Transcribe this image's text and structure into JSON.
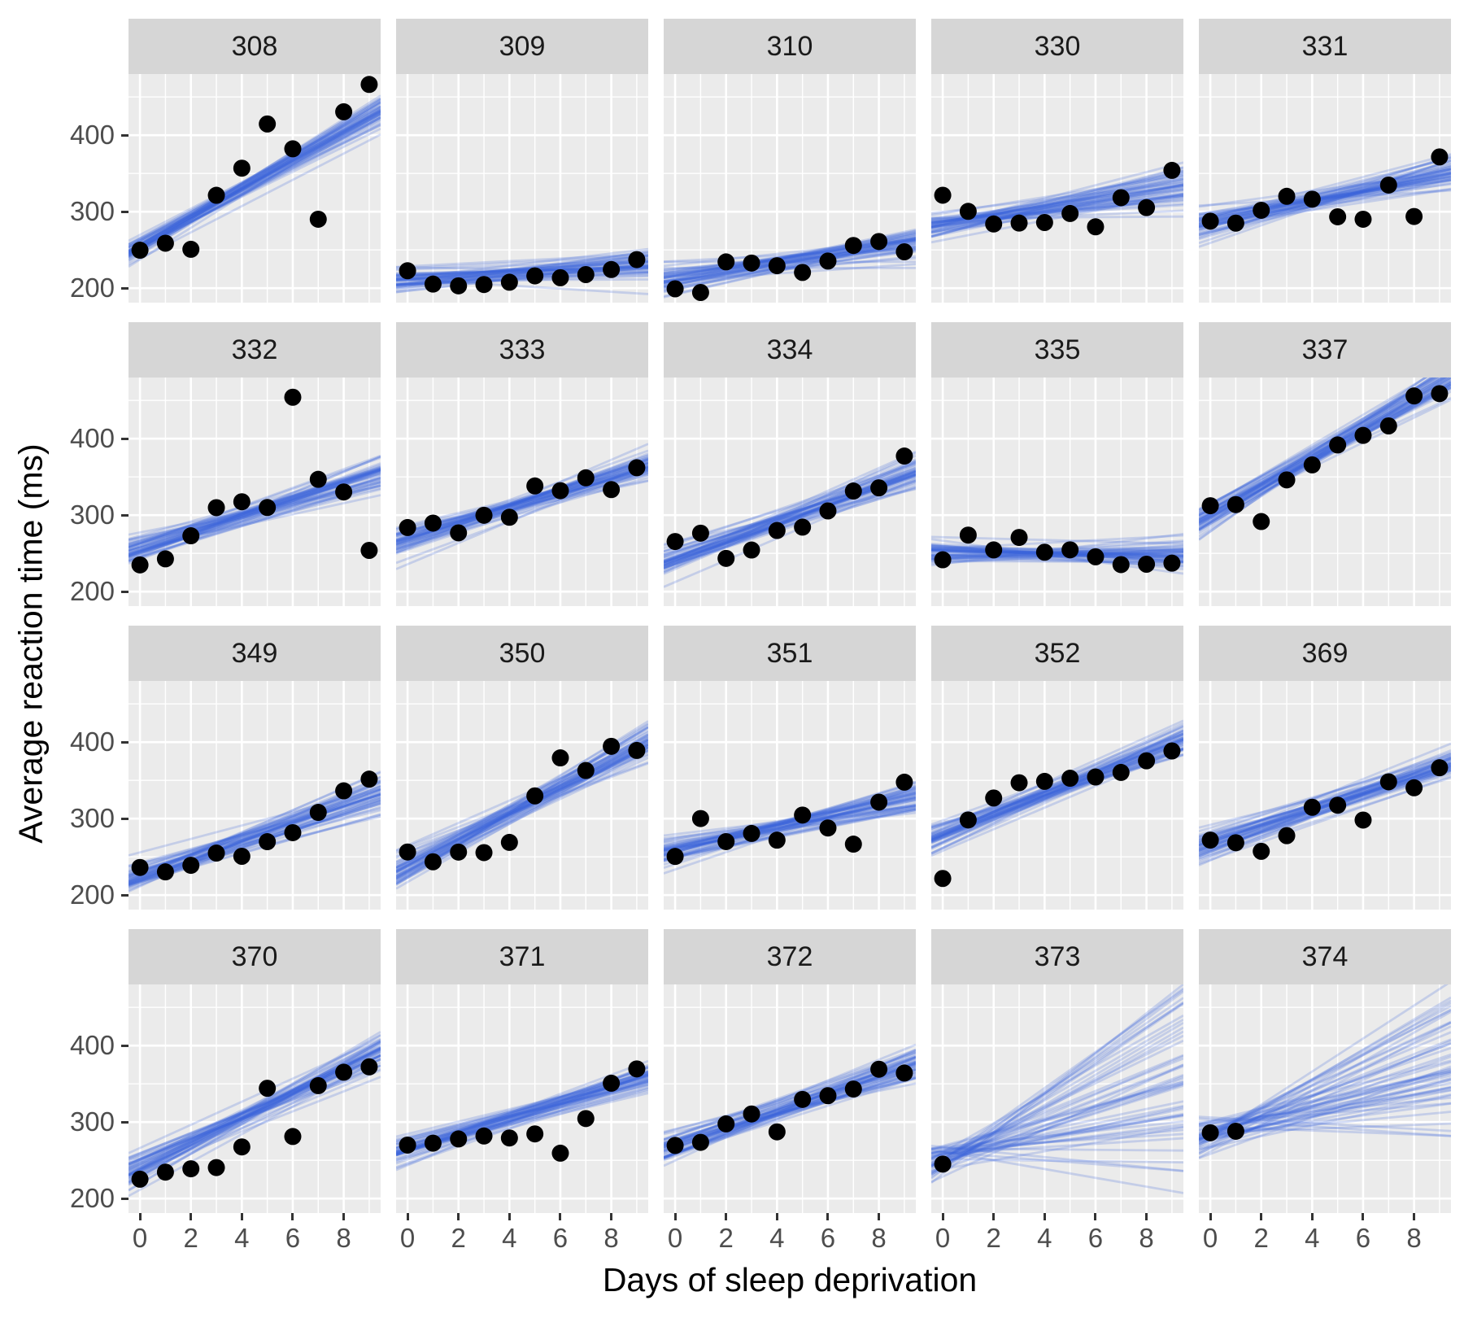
{
  "titles": {
    "x_axis": "Days of sleep deprivation",
    "y_axis": "Average reaction time (ms)"
  },
  "style": {
    "figure_bg": "#FFFFFF",
    "panel_bg": "#EBEBEB",
    "strip_bg": "#D6D6D6",
    "strip_text": "#1A1A1A",
    "grid_color": "#FFFFFF",
    "point_color": "#000000",
    "line_color": "#3A66D9",
    "line_alpha": 0.22,
    "tick_mark_color": "#333333",
    "tick_label_color": "#4D4D4D",
    "axis_title_color": "#000000"
  },
  "chart_data": {
    "type": "scatter",
    "subtype": "faceted scatter with posterior fit line draws",
    "facet_variable": "Subject",
    "x_variable": "Days of sleep deprivation",
    "y_variable": "Average reaction time (ms)",
    "x_axis": {
      "ticks": [
        0,
        2,
        4,
        6,
        8
      ],
      "minor_ticks": [
        1,
        3,
        5,
        7,
        9
      ],
      "limits": [
        -0.45,
        9.45
      ]
    },
    "y_axis": {
      "ticks": [
        200,
        300,
        400
      ],
      "minor_ticks": [
        250,
        350,
        450
      ],
      "limits": [
        181,
        480
      ]
    },
    "grid": true,
    "legend": "none",
    "fit_line_draws_per_facet": 50,
    "facets": [
      {
        "label": "308",
        "days": [
          0,
          1,
          2,
          3,
          4,
          5,
          6,
          7,
          8,
          9
        ],
        "reaction": [
          249.6,
          258.7,
          250.8,
          321.4,
          356.9,
          414.7,
          382.2,
          290.1,
          430.6,
          466.4
        ],
        "fit": {
          "intercept": 252,
          "slope": 19.2,
          "intercept_sd": 9,
          "slope_sd": 1.6
        }
      },
      {
        "label": "309",
        "days": [
          0,
          1,
          2,
          3,
          4,
          5,
          6,
          7,
          8,
          9
        ],
        "reaction": [
          222.7,
          205.3,
          203.0,
          204.7,
          207.7,
          216.0,
          213.6,
          217.7,
          224.3,
          237.3
        ],
        "fit": {
          "intercept": 211,
          "slope": 1.8,
          "intercept_sd": 8,
          "slope_sd": 1.4
        }
      },
      {
        "label": "310",
        "days": [
          0,
          1,
          2,
          3,
          4,
          5,
          6,
          7,
          8,
          9
        ],
        "reaction": [
          199.1,
          194.3,
          234.3,
          232.8,
          229.3,
          220.5,
          235.4,
          255.8,
          261.0,
          247.5
        ],
        "fit": {
          "intercept": 213,
          "slope": 4.8,
          "intercept_sd": 8,
          "slope_sd": 1.5
        }
      },
      {
        "label": "330",
        "days": [
          0,
          1,
          2,
          3,
          4,
          5,
          6,
          7,
          8,
          9
        ],
        "reaction": [
          321.5,
          300.4,
          283.9,
          285.1,
          285.8,
          297.6,
          280.2,
          318.3,
          305.3,
          354.0
        ],
        "fit": {
          "intercept": 283,
          "slope": 5.3,
          "intercept_sd": 10,
          "slope_sd": 1.9
        }
      },
      {
        "label": "331",
        "days": [
          0,
          1,
          2,
          3,
          4,
          5,
          6,
          7,
          8,
          9
        ],
        "reaction": [
          287.6,
          285.0,
          301.8,
          320.1,
          316.3,
          293.3,
          290.1,
          334.8,
          293.7,
          371.6
        ],
        "fit": {
          "intercept": 285,
          "slope": 7.2,
          "intercept_sd": 9,
          "slope_sd": 1.7
        }
      },
      {
        "label": "332",
        "days": [
          0,
          1,
          2,
          3,
          4,
          5,
          6,
          7,
          8,
          9
        ],
        "reaction": [
          234.9,
          242.8,
          273.0,
          309.8,
          317.5,
          310.0,
          454.2,
          346.8,
          330.3,
          253.9
        ],
        "fit": {
          "intercept": 259,
          "slope": 10.0,
          "intercept_sd": 10,
          "slope_sd": 1.8
        }
      },
      {
        "label": "333",
        "days": [
          0,
          1,
          2,
          3,
          4,
          5,
          6,
          7,
          8,
          9
        ],
        "reaction": [
          283.8,
          289.6,
          276.8,
          299.8,
          297.2,
          338.2,
          332.0,
          348.8,
          333.4,
          362.0
        ],
        "fit": {
          "intercept": 268,
          "slope": 10.2,
          "intercept_sd": 9,
          "slope_sd": 1.6
        }
      },
      {
        "label": "334",
        "days": [
          0,
          1,
          2,
          3,
          4,
          5,
          6,
          7,
          8,
          9
        ],
        "reaction": [
          265.5,
          276.4,
          243.4,
          254.4,
          279.9,
          284.3,
          305.5,
          331.5,
          335.7,
          377.3
        ],
        "fit": {
          "intercept": 245,
          "slope": 11.5,
          "intercept_sd": 9,
          "slope_sd": 1.6
        }
      },
      {
        "label": "335",
        "days": [
          0,
          1,
          2,
          3,
          4,
          5,
          6,
          7,
          8,
          9
        ],
        "reaction": [
          241.6,
          273.9,
          254.5,
          270.8,
          251.5,
          254.6,
          245.5,
          235.3,
          235.8,
          237.2
        ],
        "fit": {
          "intercept": 251,
          "slope": -0.2,
          "intercept_sd": 9,
          "slope_sd": 1.8
        }
      },
      {
        "label": "337",
        "days": [
          0,
          1,
          2,
          3,
          4,
          5,
          6,
          7,
          8,
          9
        ],
        "reaction": [
          312.3,
          313.8,
          291.6,
          346.1,
          365.7,
          391.8,
          404.3,
          416.7,
          455.9,
          458.9
        ],
        "fit": {
          "intercept": 300,
          "slope": 18.9,
          "intercept_sd": 10,
          "slope_sd": 1.7
        }
      },
      {
        "label": "349",
        "days": [
          0,
          1,
          2,
          3,
          4,
          5,
          6,
          7,
          8,
          9
        ],
        "reaction": [
          236.1,
          230.3,
          238.9,
          254.9,
          250.7,
          269.8,
          281.6,
          308.1,
          336.3,
          351.6
        ],
        "fit": {
          "intercept": 226,
          "slope": 11.6,
          "intercept_sd": 9,
          "slope_sd": 1.7
        }
      },
      {
        "label": "350",
        "days": [
          0,
          1,
          2,
          3,
          4,
          5,
          6,
          7,
          8,
          9
        ],
        "reaction": [
          256.3,
          243.5,
          256.2,
          255.5,
          268.9,
          329.7,
          379.4,
          362.9,
          394.5,
          389.1
        ],
        "fit": {
          "intercept": 239,
          "slope": 17.0,
          "intercept_sd": 11,
          "slope_sd": 1.9
        }
      },
      {
        "label": "351",
        "days": [
          0,
          1,
          2,
          3,
          4,
          5,
          6,
          7,
          8,
          9
        ],
        "reaction": [
          250.5,
          300.1,
          269.9,
          280.6,
          271.8,
          304.6,
          287.7,
          266.6,
          321.5,
          347.6
        ],
        "fit": {
          "intercept": 258,
          "slope": 7.6,
          "intercept_sd": 9,
          "slope_sd": 1.7
        }
      },
      {
        "label": "352",
        "days": [
          0,
          1,
          2,
          3,
          4,
          5,
          6,
          7,
          8,
          9
        ],
        "reaction": [
          221.7,
          298.2,
          326.9,
          346.9,
          348.7,
          352.8,
          354.4,
          360.4,
          375.6,
          388.5
        ],
        "fit": {
          "intercept": 278,
          "slope": 13.4,
          "intercept_sd": 10,
          "slope_sd": 1.7
        }
      },
      {
        "label": "369",
        "days": [
          0,
          1,
          2,
          3,
          4,
          5,
          6,
          7,
          8,
          9
        ],
        "reaction": [
          271.9,
          268.4,
          257.2,
          277.7,
          314.8,
          317.5,
          298.1,
          348.1,
          340.3,
          366.5
        ],
        "fit": {
          "intercept": 266,
          "slope": 11.2,
          "intercept_sd": 9,
          "slope_sd": 1.6
        }
      },
      {
        "label": "370",
        "days": [
          0,
          1,
          2,
          3,
          4,
          5,
          6,
          7,
          8,
          9
        ],
        "reaction": [
          225.3,
          234.5,
          238.9,
          240.5,
          267.5,
          344.2,
          281.1,
          347.6,
          365.2,
          372.2
        ],
        "fit": {
          "intercept": 240,
          "slope": 16.2,
          "intercept_sd": 11,
          "slope_sd": 1.9
        }
      },
      {
        "label": "371",
        "days": [
          0,
          1,
          2,
          3,
          4,
          5,
          6,
          7,
          8,
          9
        ],
        "reaction": [
          269.9,
          272.4,
          277.9,
          281.8,
          279.2,
          284.5,
          259.3,
          304.6,
          350.8,
          369.5
        ],
        "fit": {
          "intercept": 265,
          "slope": 9.9,
          "intercept_sd": 9,
          "slope_sd": 1.6
        }
      },
      {
        "label": "372",
        "days": [
          0,
          1,
          2,
          3,
          4,
          5,
          6,
          7,
          8,
          9
        ],
        "reaction": [
          269.4,
          273.5,
          297.6,
          310.6,
          287.2,
          329.6,
          334.5,
          343.2,
          369.1,
          364.1
        ],
        "fit": {
          "intercept": 269,
          "slope": 11.3,
          "intercept_sd": 9,
          "slope_sd": 1.5
        }
      },
      {
        "label": "373",
        "days": [
          0
        ],
        "reaction": [
          245.0
        ],
        "fit": {
          "intercept": 254,
          "slope": 10.5,
          "intercept_sd": 10,
          "slope_sd": 7.8
        }
      },
      {
        "label": "374",
        "days": [
          0,
          1
        ],
        "reaction": [
          286.0,
          288.0
        ],
        "fit": {
          "intercept": 283,
          "slope": 9.5,
          "intercept_sd": 12,
          "slope_sd": 7.3
        }
      }
    ]
  }
}
